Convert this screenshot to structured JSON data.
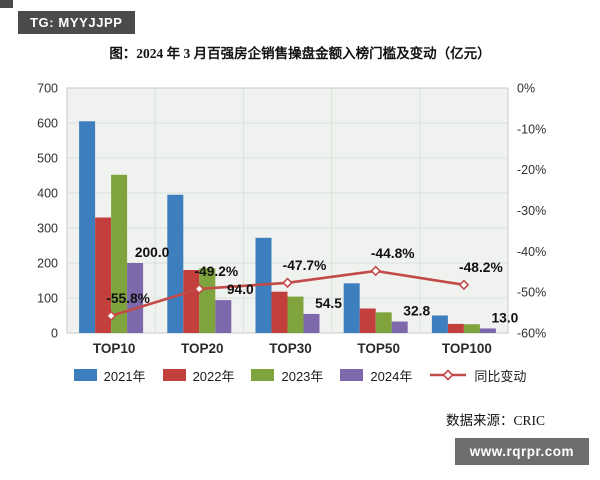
{
  "badge": {
    "text": "TG: MYYJJPP"
  },
  "watermark": {
    "text": "www.rqrpr.com"
  },
  "source": "数据来源：CRIC",
  "chart_data": {
    "type": "bar",
    "title": "图：2024 年 3 月百强房企销售操盘金额入榜门槛及变动（亿元）",
    "categories": [
      "TOP10",
      "TOP20",
      "TOP30",
      "TOP50",
      "TOP100"
    ],
    "series": [
      {
        "name": "2021年",
        "color": "#3d7ebf",
        "values": [
          605,
          395,
          272,
          142,
          50
        ]
      },
      {
        "name": "2022年",
        "color": "#c23f3c",
        "values": [
          330,
          180,
          118,
          70,
          26
        ]
      },
      {
        "name": "2023年",
        "color": "#7fa43d",
        "values": [
          452,
          185,
          104,
          59,
          25
        ]
      },
      {
        "name": "2024年",
        "color": "#7e68ac",
        "values": [
          200.0,
          94.0,
          54.5,
          32.8,
          13.0
        ]
      }
    ],
    "line_series": {
      "name": "同比变动",
      "color": "#c24a47",
      "values": [
        -55.8,
        -49.2,
        -47.7,
        -44.8,
        -48.2
      ]
    },
    "bar_labels": [
      "200.0",
      "94.0",
      "54.5",
      "32.8",
      "13.0"
    ],
    "line_labels": [
      "-55.8%",
      "-49.2%",
      "-47.7%",
      "-44.8%",
      "-48.2%"
    ],
    "left_axis": {
      "min": 0,
      "max": 700,
      "step": 100,
      "ticks": [
        "700",
        "600",
        "500",
        "400",
        "300",
        "200",
        "100",
        "0"
      ]
    },
    "right_axis": {
      "min": -60,
      "max": 0,
      "step": 10,
      "ticks": [
        "0%",
        "-10%",
        "-20%",
        "-30%",
        "-40%",
        "-50%",
        "-60%"
      ]
    },
    "grid": true,
    "legend_position": "bottom",
    "plot_bg": "#f0f2ef",
    "grid_color": "#dde1dd",
    "border_color": "#c6cbc6"
  }
}
